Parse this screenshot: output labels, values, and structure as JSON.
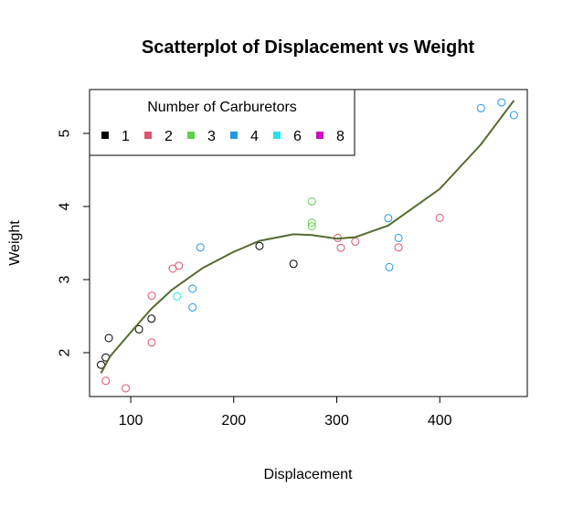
{
  "chart_data": {
    "type": "scatter",
    "title": "Scatterplot of Displacement vs Weight",
    "xlabel": "Displacement",
    "ylabel": "Weight",
    "xlim": [
      60,
      485
    ],
    "ylim": [
      1.4,
      5.6
    ],
    "xticks": [
      100,
      200,
      300,
      400
    ],
    "yticks": [
      2,
      3,
      4,
      5
    ],
    "grid": false,
    "legend": {
      "title": "Number of Carburetors",
      "placement": "top-left",
      "entries": [
        {
          "label": "1",
          "color": "#000000"
        },
        {
          "label": "2",
          "color": "#DF536B"
        },
        {
          "label": "3",
          "color": "#61D04F"
        },
        {
          "label": "4",
          "color": "#2297E6"
        },
        {
          "label": "6",
          "color": "#28E2E5"
        },
        {
          "label": "8",
          "color": "#CD0BBC"
        }
      ]
    },
    "series": [
      {
        "name": "1",
        "color": "#000000",
        "points": [
          [
            71.1,
            1.835
          ],
          [
            75.7,
            1.935
          ],
          [
            78.7,
            2.2
          ],
          [
            108,
            2.32
          ],
          [
            120.1,
            2.465
          ],
          [
            225,
            3.46
          ],
          [
            258,
            3.215
          ]
        ]
      },
      {
        "name": "2",
        "color": "#DF536B",
        "points": [
          [
            75.7,
            1.615
          ],
          [
            95.1,
            1.513
          ],
          [
            120.3,
            2.14
          ],
          [
            120.3,
            2.78
          ],
          [
            140.8,
            3.15
          ],
          [
            146.7,
            3.19
          ],
          [
            304,
            3.435
          ],
          [
            318,
            3.52
          ],
          [
            360,
            3.44
          ],
          [
            400,
            3.845
          ],
          [
            301,
            3.57
          ]
        ]
      },
      {
        "name": "3",
        "color": "#61D04F",
        "points": [
          [
            275.8,
            4.07
          ],
          [
            275.8,
            3.73
          ],
          [
            275.8,
            3.78
          ]
        ]
      },
      {
        "name": "4",
        "color": "#2297E6",
        "points": [
          [
            160,
            2.62
          ],
          [
            160,
            2.875
          ],
          [
            167.6,
            3.44
          ],
          [
            350,
            3.84
          ],
          [
            360,
            3.57
          ],
          [
            351,
            3.17
          ],
          [
            440,
            5.345
          ],
          [
            460,
            5.424
          ],
          [
            472,
            5.25
          ]
        ]
      },
      {
        "name": "6",
        "color": "#28E2E5",
        "points": [
          [
            145,
            2.77
          ]
        ]
      },
      {
        "name": "8",
        "color": "#CD0BBC",
        "points": []
      }
    ],
    "smooth_line": {
      "color": "#556B2F",
      "x": [
        71.1,
        80,
        100,
        120,
        140,
        160,
        170,
        200,
        225,
        258,
        275.8,
        300,
        318,
        350,
        400,
        440,
        472
      ],
      "y": [
        1.72,
        1.95,
        2.28,
        2.6,
        2.86,
        3.06,
        3.16,
        3.38,
        3.53,
        3.62,
        3.61,
        3.56,
        3.58,
        3.74,
        4.24,
        4.85,
        5.45
      ]
    }
  }
}
